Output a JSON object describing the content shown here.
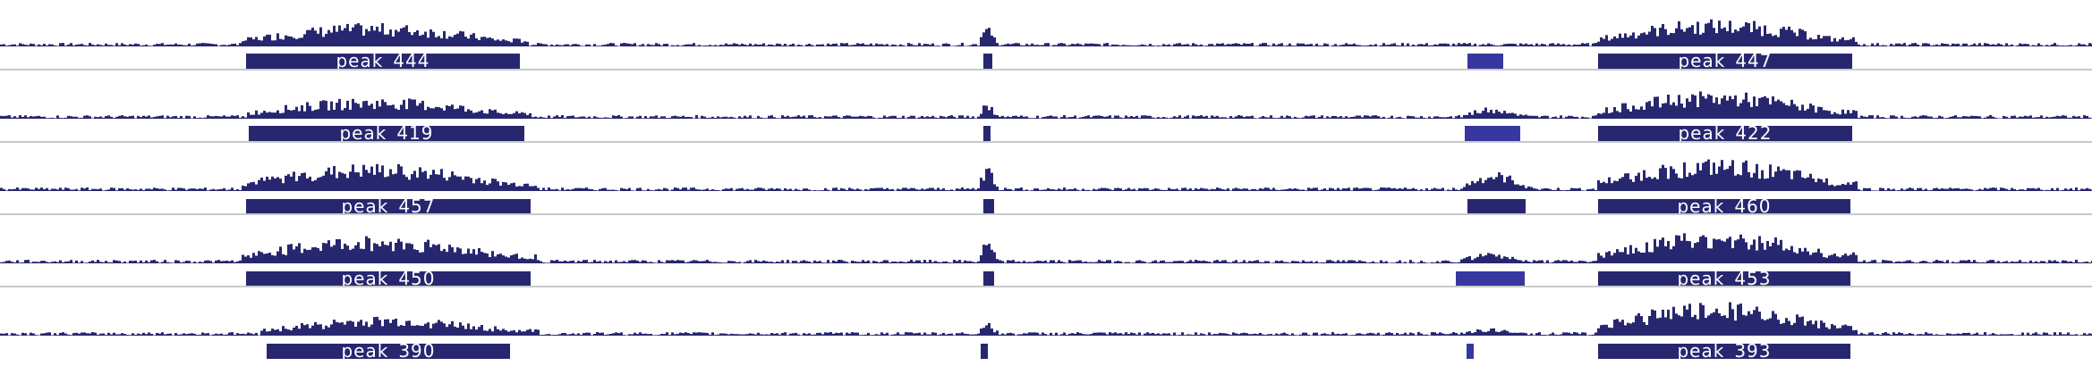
{
  "colors": {
    "signal": "#272770",
    "peak_light": "#37379f",
    "separator": "#c9c9c9",
    "background": "#ffffff"
  },
  "tracks": [
    {
      "peaks": [
        {
          "label": "peak_444"
        },
        {
          "label": ""
        },
        {
          "label": ""
        },
        {
          "label": "peak_447"
        }
      ]
    },
    {
      "peaks": [
        {
          "label": "peak_419"
        },
        {
          "label": ""
        },
        {
          "label": ""
        },
        {
          "label": "peak_422"
        }
      ]
    },
    {
      "peaks": [
        {
          "label": "peak_457"
        },
        {
          "label": ""
        },
        {
          "label": ""
        },
        {
          "label": "peak_460"
        }
      ]
    },
    {
      "peaks": [
        {
          "label": "peak_450"
        },
        {
          "label": ""
        },
        {
          "label": ""
        },
        {
          "label": "peak_453"
        }
      ]
    },
    {
      "peaks": [
        {
          "label": "peak_390"
        },
        {
          "label": ""
        },
        {
          "label": ""
        },
        {
          "label": "peak_393"
        }
      ]
    }
  ]
}
